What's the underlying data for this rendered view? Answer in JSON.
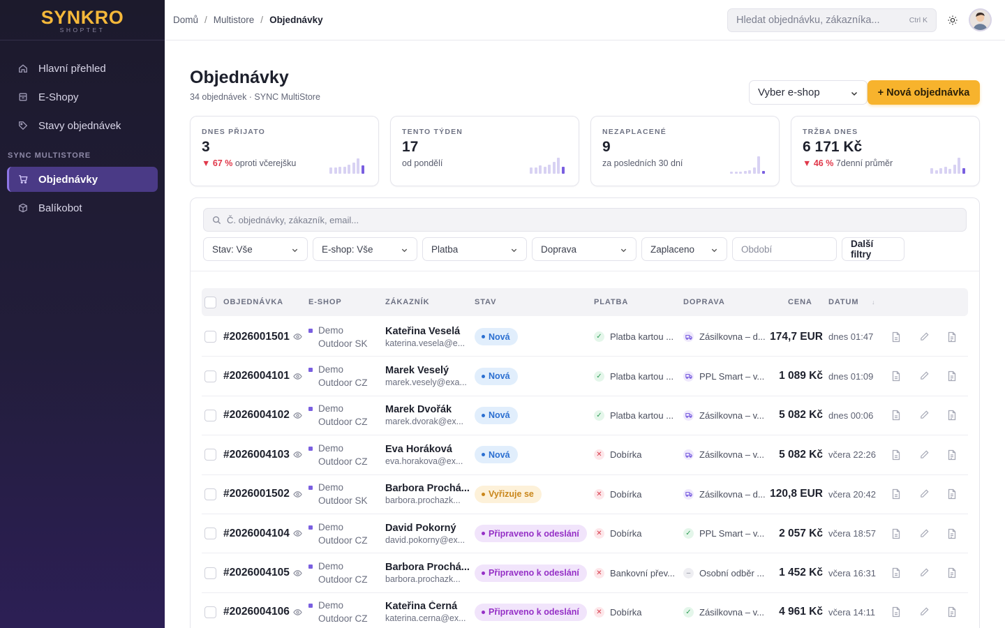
{
  "brand": {
    "name": "SYNKRO",
    "sub": "SHOPTET"
  },
  "sidebar": {
    "items": [
      {
        "label": "Hlavní přehled",
        "icon": "home-icon"
      },
      {
        "label": "E-Shopy",
        "icon": "store-icon"
      },
      {
        "label": "Stavy objednávek",
        "icon": "tag-icon"
      }
    ],
    "section": "SYNC MULTISTORE",
    "section_items": [
      {
        "label": "Objednávky",
        "icon": "cart-icon",
        "active": true
      },
      {
        "label": "Balíkobot",
        "icon": "package-icon"
      }
    ]
  },
  "topbar": {
    "breadcrumb": [
      "Domů",
      "Multistore",
      "Objednávky"
    ],
    "search_placeholder": "Hledat objednávku, zákazníka...",
    "search_shortcut": "Ctrl K"
  },
  "page": {
    "title": "Objednávky",
    "subtitle": "34 objednávek · SYNC MultiStore",
    "eshop_select": "Vyber e-shop",
    "new_button": "+ Nová objednávka"
  },
  "kpis": [
    {
      "label": "DNES PŘIJATO",
      "value": "3",
      "delta": "▼ 67 %",
      "note": "oproti včerejšku",
      "spark": [
        0.35,
        0.35,
        0.4,
        0.4,
        0.5,
        0.6,
        0.85,
        0.45
      ]
    },
    {
      "label": "TENTO TÝDEN",
      "value": "17",
      "delta": "",
      "note": "od pondělí",
      "spark": [
        0.35,
        0.35,
        0.45,
        0.4,
        0.5,
        0.65,
        0.9,
        0.4
      ]
    },
    {
      "label": "NEZAPLACENÉ",
      "value": "9",
      "delta": "",
      "note": "za posledních 30 dní",
      "spark": [
        0.1,
        0.1,
        0.1,
        0.15,
        0.2,
        0.35,
        0.95,
        0.15
      ]
    },
    {
      "label": "TRŽBA DNES",
      "value": "6 171 Kč",
      "delta": "▼ 46 %",
      "note": "7denní průměr",
      "spark": [
        0.3,
        0.2,
        0.3,
        0.4,
        0.25,
        0.5,
        0.9,
        0.3
      ]
    }
  ],
  "filters": {
    "search_placeholder": "Č. objednávky, zákazník, email...",
    "selects": [
      "Stav: Vše",
      "E-shop: Vše",
      "Platba",
      "Doprava",
      "Zaplaceno"
    ],
    "period_placeholder": "Období",
    "more_button": "Další filtry"
  },
  "table": {
    "headers": [
      "OBJEDNÁVKA",
      "E-SHOP",
      "ZÁKAZNÍK",
      "STAV",
      "PLATBA",
      "DOPRAVA",
      "CENA",
      "DATUM"
    ],
    "rows": [
      {
        "order": "#2026001501",
        "shop1": "Demo",
        "shop2": "Outdoor SK",
        "name": "Kateřina Veselá",
        "email": "katerina.vesela@e...",
        "status": "Nová",
        "status_type": "nova",
        "payment": "Platba kartou ...",
        "pay_ok": true,
        "shipping": "Zásilkovna – d...",
        "ship_icon": "truck",
        "price": "174,7 EUR",
        "date": "dnes 01:47"
      },
      {
        "order": "#2026004101",
        "shop1": "Demo",
        "shop2": "Outdoor CZ",
        "name": "Marek Veselý",
        "email": "marek.vesely@exa...",
        "status": "Nová",
        "status_type": "nova",
        "payment": "Platba kartou ...",
        "pay_ok": true,
        "shipping": "PPL Smart – v...",
        "ship_icon": "truck",
        "price": "1 089 Kč",
        "date": "dnes 01:09"
      },
      {
        "order": "#2026004102",
        "shop1": "Demo",
        "shop2": "Outdoor CZ",
        "name": "Marek Dvořák",
        "email": "marek.dvorak@ex...",
        "status": "Nová",
        "status_type": "nova",
        "payment": "Platba kartou ...",
        "pay_ok": true,
        "shipping": "Zásilkovna – v...",
        "ship_icon": "truck",
        "price": "5 082 Kč",
        "date": "dnes 00:06"
      },
      {
        "order": "#2026004103",
        "shop1": "Demo",
        "shop2": "Outdoor CZ",
        "name": "Eva Horáková",
        "email": "eva.horakova@ex...",
        "status": "Nová",
        "status_type": "nova",
        "payment": "Dobírka",
        "pay_ok": false,
        "shipping": "Zásilkovna – v...",
        "ship_icon": "truck",
        "price": "5 082 Kč",
        "date": "včera 22:26"
      },
      {
        "order": "#2026001502",
        "shop1": "Demo",
        "shop2": "Outdoor SK",
        "name": "Barbora Prochá...",
        "email": "barbora.prochazk...",
        "status": "Vyřizuje se",
        "status_type": "vyr",
        "payment": "Dobírka",
        "pay_ok": false,
        "shipping": "Zásilkovna – d...",
        "ship_icon": "truck",
        "price": "120,8 EUR",
        "date": "včera 20:42"
      },
      {
        "order": "#2026004104",
        "shop1": "Demo",
        "shop2": "Outdoor CZ",
        "name": "David Pokorný",
        "email": "david.pokorny@ex...",
        "status": "Připraveno k odeslání",
        "status_type": "pri",
        "payment": "Dobírka",
        "pay_ok": false,
        "shipping": "PPL Smart – v...",
        "ship_icon": "ok",
        "price": "2 057 Kč",
        "date": "včera 18:57"
      },
      {
        "order": "#2026004105",
        "shop1": "Demo",
        "shop2": "Outdoor CZ",
        "name": "Barbora Prochá...",
        "email": "barbora.prochazk...",
        "status": "Připraveno k odeslání",
        "status_type": "pri",
        "payment": "Bankovní přev...",
        "pay_ok": false,
        "shipping": "Osobní odběr ...",
        "ship_icon": "neutral",
        "price": "1 452 Kč",
        "date": "včera 16:31"
      },
      {
        "order": "#2026004106",
        "shop1": "Demo",
        "shop2": "Outdoor CZ",
        "name": "Kateřina Černá",
        "email": "katerina.cerna@ex...",
        "status": "Připraveno k odeslání",
        "status_type": "pri",
        "payment": "Dobírka",
        "pay_ok": false,
        "shipping": "Zásilkovna – v...",
        "ship_icon": "ok",
        "price": "4 961 Kč",
        "date": "včera 14:11"
      }
    ]
  }
}
